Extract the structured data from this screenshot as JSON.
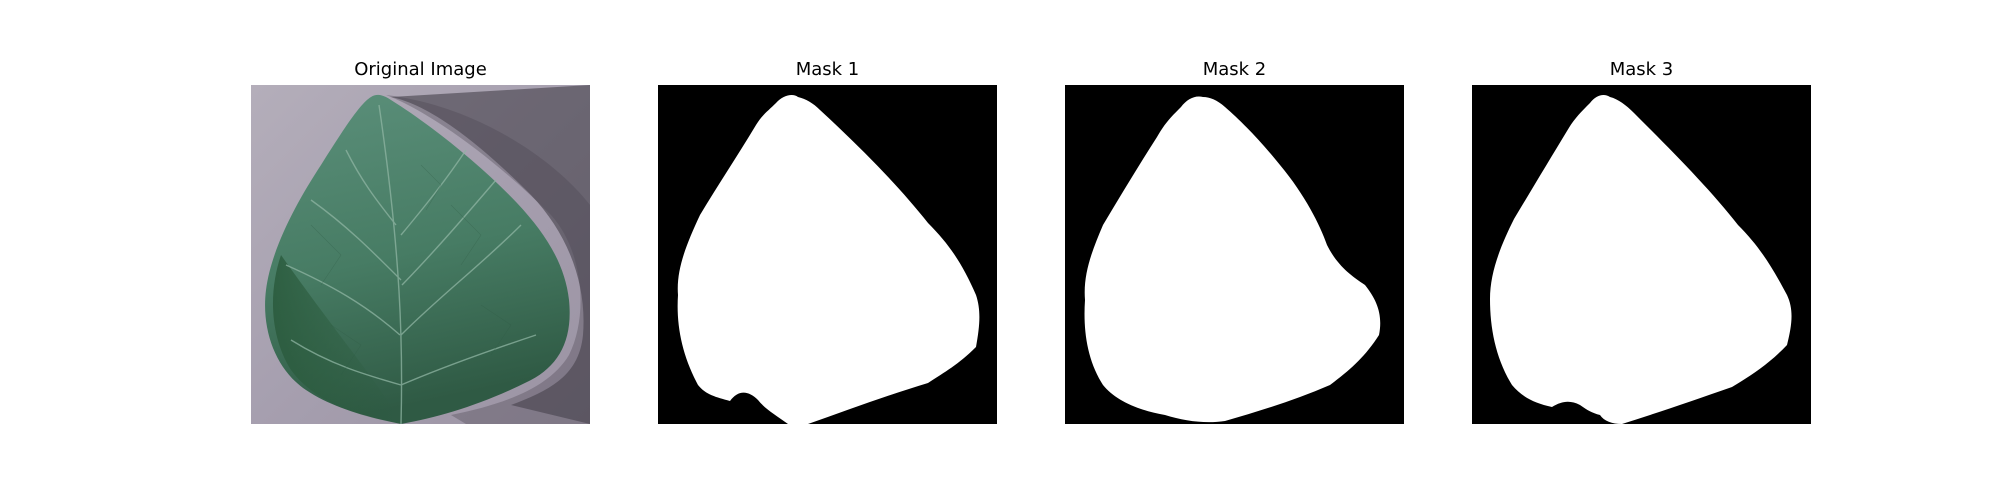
{
  "panels": [
    {
      "title": "Original Image",
      "kind": "photo",
      "subject": "leaf-photo"
    },
    {
      "title": "Mask 1",
      "kind": "mask",
      "subject": "leaf-mask"
    },
    {
      "title": "Mask 2",
      "kind": "mask",
      "subject": "leaf-mask"
    },
    {
      "title": "Mask 3",
      "kind": "mask",
      "subject": "leaf-mask"
    }
  ],
  "colors": {
    "background": "#ffffff",
    "mask_background": "#000000",
    "mask_foreground": "#ffffff",
    "photo_backdrop": "#a69faf",
    "leaf_light": "#5b8f7a",
    "leaf_dark": "#2f5a44",
    "leaf_vein": "#8fb5a3",
    "shadow": "#3b3740"
  }
}
